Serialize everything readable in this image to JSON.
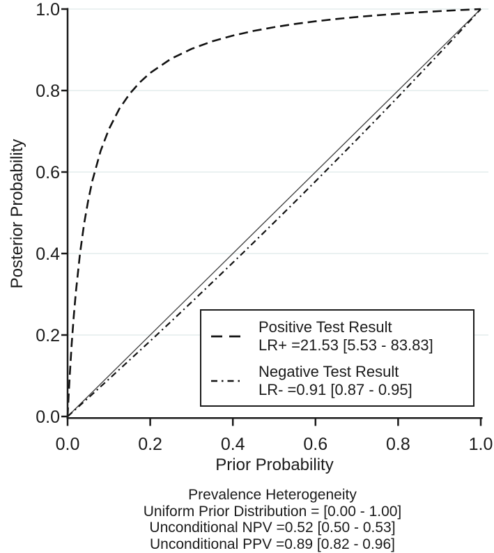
{
  "figure": {
    "background": "#ffffff",
    "axis_color": "#1a1a1a",
    "curve_color": "#111111",
    "reference_line_color": "#3c3c3c"
  },
  "chart_data": {
    "type": "line",
    "title": "",
    "xlabel": "Prior Probability",
    "ylabel": "Posterior Probability",
    "xlim": [
      0,
      1
    ],
    "ylim": [
      0,
      1
    ],
    "xticks": [
      0,
      0.2,
      0.4,
      0.6,
      0.8,
      1
    ],
    "yticks": [
      0,
      0.2,
      0.4,
      0.6,
      0.8,
      1
    ],
    "xtick_labels": [
      "0.0",
      "0.2",
      "0.4",
      "0.6",
      "0.8",
      "1.0"
    ],
    "ytick_labels": [
      "0.0",
      "0.2",
      "0.4",
      "0.6",
      "0.8",
      "1.0"
    ],
    "grid": "horizontal",
    "gridline_color": "#e7efef",
    "legend_position": "lower right inside",
    "series": [
      {
        "name": "Positive Test Result",
        "stat_label": "LR+ =21.53 [5.53 - 83.83]",
        "lr": 21.53,
        "ci_low": 5.53,
        "ci_high": 83.83,
        "line_style": "dashed",
        "x": [
          0,
          0.0025,
          0.005,
          0.01,
          0.015,
          0.02,
          0.03,
          0.04,
          0.05,
          0.06,
          0.08,
          0.1,
          0.125,
          0.15,
          0.175,
          0.2,
          0.25,
          0.3,
          0.35,
          0.4,
          0.45,
          0.5,
          0.55,
          0.6,
          0.65,
          0.7,
          0.75,
          0.8,
          0.85,
          0.9,
          0.95,
          1
        ],
        "y": [
          0,
          0.0512,
          0.0976,
          0.1786,
          0.2469,
          0.3053,
          0.3997,
          0.4729,
          0.5312,
          0.5788,
          0.6518,
          0.7052,
          0.7547,
          0.7917,
          0.8204,
          0.8433,
          0.8777,
          0.9022,
          0.9206,
          0.9349,
          0.9463,
          0.9556,
          0.9634,
          0.97,
          0.9756,
          0.9805,
          0.9848,
          0.9885,
          0.9919,
          0.9949,
          0.9976,
          1
        ]
      },
      {
        "name": "Negative Test Result",
        "stat_label": "LR- =0.91 [0.87 - 0.95]",
        "lr": 0.91,
        "ci_low": 0.87,
        "ci_high": 0.95,
        "line_style": "dashdot",
        "x": [
          0,
          0.05,
          0.1,
          0.15,
          0.2,
          0.25,
          0.3,
          0.35,
          0.4,
          0.45,
          0.5,
          0.55,
          0.6,
          0.65,
          0.7,
          0.75,
          0.8,
          0.85,
          0.9,
          0.95,
          1
        ],
        "y": [
          0,
          0.0457,
          0.0918,
          0.1384,
          0.1853,
          0.2327,
          0.2806,
          0.3289,
          0.3776,
          0.4268,
          0.4764,
          0.5266,
          0.5772,
          0.6283,
          0.6798,
          0.7319,
          0.7845,
          0.8376,
          0.8912,
          0.9453,
          1
        ]
      },
      {
        "name": "Reference Line Posterior Equals Prior",
        "stat_label": "",
        "line_style": "solid",
        "x": [
          0,
          1
        ],
        "y": [
          0,
          1
        ]
      }
    ]
  },
  "legend": {
    "entries": [
      {
        "label": "Positive Test Result",
        "stat": "LR+ =21.53 [5.53 - 83.83]",
        "style": "dashed"
      },
      {
        "label": "Negative Test Result",
        "stat": "LR- =0.91 [0.87 - 0.95]",
        "style": "dashdot"
      }
    ]
  },
  "axes": {
    "x_title": "Prior Probability",
    "y_title": "Posterior Probability"
  },
  "footer": {
    "lines": [
      "Prevalence Heterogeneity",
      "Uniform Prior Distribution = [0.00 - 1.00]",
      "Unconditional NPV =0.52 [0.50 - 0.53]",
      "Unconditional PPV =0.89 [0.82 - 0.96]"
    ]
  }
}
